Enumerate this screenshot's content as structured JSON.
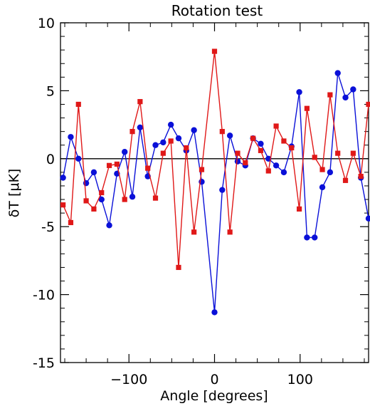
{
  "chart_data": {
    "type": "line",
    "title": "Rotation test",
    "xlabel": "Angle [degrees]",
    "ylabel": "δT [μK]",
    "xlim": [
      -180,
      180
    ],
    "ylim": [
      -15,
      10
    ],
    "xticks": [
      -100,
      0,
      100
    ],
    "yticks": [
      10,
      5,
      0,
      -5,
      -10,
      -15
    ],
    "zero_line": true,
    "grid": false,
    "colors": {
      "blue": "#0a10d8",
      "red": "#e01818",
      "axes": "#000000"
    },
    "x": [
      -177,
      -168,
      -159,
      -150,
      -141,
      -132,
      -123,
      -114,
      -105,
      -96,
      -87,
      -78,
      -69,
      -60,
      -51,
      -42,
      -33,
      -24,
      -15,
      -6,
      0,
      9,
      18,
      27,
      36,
      45,
      54,
      63,
      72,
      81,
      90,
      99,
      108,
      117,
      126,
      135,
      144,
      153,
      162,
      171,
      180
    ],
    "series": [
      {
        "marker": "circle",
        "color": "#0a10d8",
        "values": [
          -1.4,
          1.6,
          0.0,
          -1.8,
          -1.0,
          -3.0,
          -4.9,
          -1.1,
          0.5,
          -2.8,
          2.3,
          -1.3,
          1.0,
          1.2,
          2.5,
          1.5,
          0.6,
          2.1,
          -1.7,
          null,
          -11.3,
          -2.3,
          1.7,
          -0.2,
          -0.5,
          1.5,
          1.1,
          0.0,
          -0.5,
          -1.0,
          0.9,
          4.9,
          -5.8,
          -5.8,
          -2.1,
          -1.0,
          6.3,
          4.5,
          5.1,
          -1.4,
          -4.4
        ]
      },
      {
        "marker": "square",
        "color": "#e01818",
        "values": [
          -3.4,
          -4.7,
          4.0,
          -3.1,
          -3.7,
          -2.5,
          -0.5,
          -0.4,
          -3.0,
          2.0,
          4.2,
          -0.7,
          -2.9,
          0.4,
          1.3,
          -8.0,
          0.8,
          -5.4,
          -0.8,
          null,
          7.9,
          2.0,
          -5.4,
          0.4,
          -0.3,
          1.5,
          0.6,
          -0.9,
          2.4,
          1.3,
          0.8,
          -3.7,
          3.7,
          0.1,
          -0.8,
          4.7,
          0.4,
          -1.6,
          0.4,
          -1.3,
          4.0
        ]
      }
    ]
  }
}
